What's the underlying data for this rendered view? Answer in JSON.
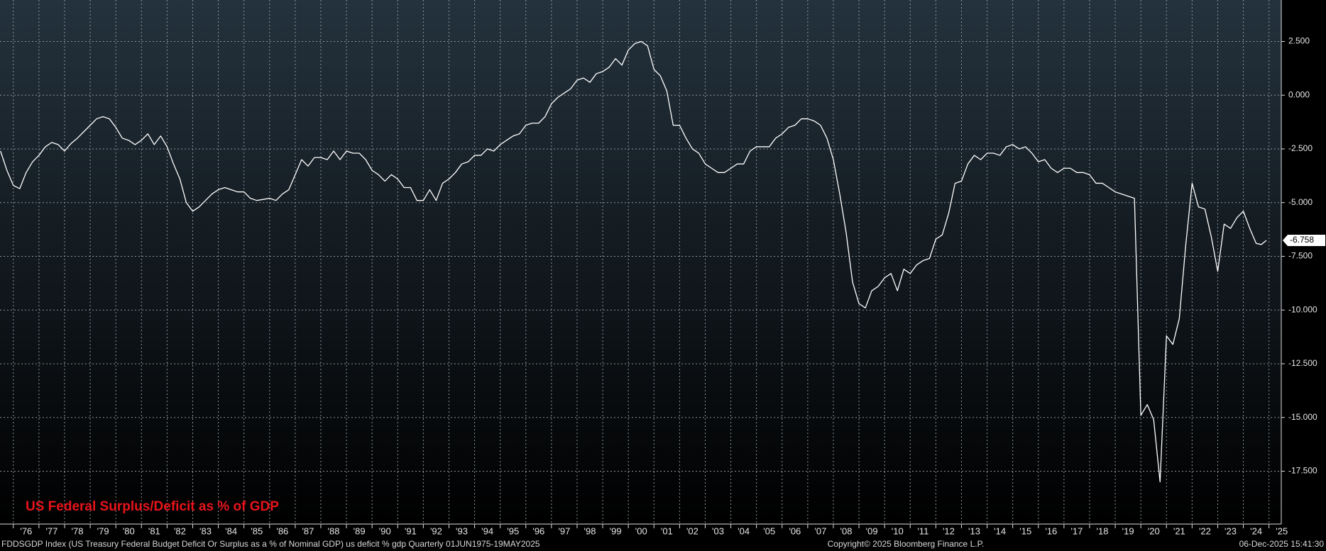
{
  "chart_data": {
    "type": "line",
    "title": "US Federal Surplus/Deficit as % of GDP",
    "source_note": "FDDSGDP Index (US Treasury Federal Budget Deficit Or Surplus as a % of Nominal GDP) us deficit % gdp Quarterly 01JUN1975-19MAY2025",
    "copyright": "Copyright© 2025 Bloomberg Finance L.P.",
    "timestamp": "06-Dec-2025 15:41:30",
    "color": "#ffffff",
    "grid": true,
    "xlim": [
      1975.48,
      2025.48
    ],
    "ylim": [
      -19.96,
      4.43
    ],
    "xticks": [
      {
        "value": 1976,
        "label": "'76"
      },
      {
        "value": 1977,
        "label": "'77"
      },
      {
        "value": 1978,
        "label": "'78"
      },
      {
        "value": 1979,
        "label": "'79"
      },
      {
        "value": 1980,
        "label": "'80"
      },
      {
        "value": 1981,
        "label": "'81"
      },
      {
        "value": 1982,
        "label": "'82"
      },
      {
        "value": 1983,
        "label": "'83"
      },
      {
        "value": 1984,
        "label": "'84"
      },
      {
        "value": 1985,
        "label": "'85"
      },
      {
        "value": 1986,
        "label": "'86"
      },
      {
        "value": 1987,
        "label": "'87"
      },
      {
        "value": 1988,
        "label": "'88"
      },
      {
        "value": 1989,
        "label": "'89"
      },
      {
        "value": 1990,
        "label": "'90"
      },
      {
        "value": 1991,
        "label": "'91"
      },
      {
        "value": 1992,
        "label": "'92"
      },
      {
        "value": 1993,
        "label": "'93"
      },
      {
        "value": 1994,
        "label": "'94"
      },
      {
        "value": 1995,
        "label": "'95"
      },
      {
        "value": 1996,
        "label": "'96"
      },
      {
        "value": 1997,
        "label": "'97"
      },
      {
        "value": 1998,
        "label": "'98"
      },
      {
        "value": 1999,
        "label": "'99"
      },
      {
        "value": 2000,
        "label": "'00"
      },
      {
        "value": 2001,
        "label": "'01"
      },
      {
        "value": 2002,
        "label": "'02"
      },
      {
        "value": 2003,
        "label": "'03"
      },
      {
        "value": 2004,
        "label": "'04"
      },
      {
        "value": 2005,
        "label": "'05"
      },
      {
        "value": 2006,
        "label": "'06"
      },
      {
        "value": 2007,
        "label": "'07"
      },
      {
        "value": 2008,
        "label": "'08"
      },
      {
        "value": 2009,
        "label": "'09"
      },
      {
        "value": 2010,
        "label": "'10"
      },
      {
        "value": 2011,
        "label": "'11"
      },
      {
        "value": 2012,
        "label": "'12"
      },
      {
        "value": 2013,
        "label": "'13"
      },
      {
        "value": 2014,
        "label": "'14"
      },
      {
        "value": 2015,
        "label": "'15"
      },
      {
        "value": 2016,
        "label": "'16"
      },
      {
        "value": 2017,
        "label": "'17"
      },
      {
        "value": 2018,
        "label": "'18"
      },
      {
        "value": 2019,
        "label": "'19"
      },
      {
        "value": 2020,
        "label": "'20"
      },
      {
        "value": 2021,
        "label": "'21"
      },
      {
        "value": 2022,
        "label": "'22"
      },
      {
        "value": 2023,
        "label": "'23"
      },
      {
        "value": 2024,
        "label": "'24"
      },
      {
        "value": 2025,
        "label": "'25"
      }
    ],
    "yticks": [
      {
        "value": 2.5,
        "label": "2.500"
      },
      {
        "value": 0,
        "label": "0.000"
      },
      {
        "value": -2.5,
        "label": "-2.500"
      },
      {
        "value": -5,
        "label": "-5.000"
      },
      {
        "value": -7.5,
        "label": "-7.500"
      },
      {
        "value": -10,
        "label": "-10.000"
      },
      {
        "value": -12.5,
        "label": "-12.500"
      },
      {
        "value": -15,
        "label": "-15.000"
      },
      {
        "value": -17.5,
        "label": "-17.500"
      }
    ],
    "x": [
      1975.5,
      1975.75,
      1976.0,
      1976.25,
      1976.5,
      1976.75,
      1977.0,
      1977.25,
      1977.5,
      1977.75,
      1978.0,
      1978.25,
      1978.5,
      1978.75,
      1979.0,
      1979.25,
      1979.5,
      1979.75,
      1980.0,
      1980.25,
      1980.5,
      1980.75,
      1981.0,
      1981.25,
      1981.5,
      1981.75,
      1982.0,
      1982.25,
      1982.5,
      1982.75,
      1983.0,
      1983.25,
      1983.5,
      1983.75,
      1984.0,
      1984.25,
      1984.5,
      1984.75,
      1985.0,
      1985.25,
      1985.5,
      1985.75,
      1986.0,
      1986.25,
      1986.5,
      1986.75,
      1987.0,
      1987.25,
      1987.5,
      1987.75,
      1988.0,
      1988.25,
      1988.5,
      1988.75,
      1989.0,
      1989.25,
      1989.5,
      1989.75,
      1990.0,
      1990.25,
      1990.5,
      1990.75,
      1991.0,
      1991.25,
      1991.5,
      1991.75,
      1992.0,
      1992.25,
      1992.5,
      1992.75,
      1993.0,
      1993.25,
      1993.5,
      1993.75,
      1994.0,
      1994.25,
      1994.5,
      1994.75,
      1995.0,
      1995.25,
      1995.5,
      1995.75,
      1996.0,
      1996.25,
      1996.5,
      1996.75,
      1997.0,
      1997.25,
      1997.5,
      1997.75,
      1998.0,
      1998.25,
      1998.5,
      1998.75,
      1999.0,
      1999.25,
      1999.5,
      1999.75,
      2000.0,
      2000.25,
      2000.5,
      2000.75,
      2001.0,
      2001.25,
      2001.5,
      2001.75,
      2002.0,
      2002.25,
      2002.5,
      2002.75,
      2003.0,
      2003.25,
      2003.5,
      2003.75,
      2004.0,
      2004.25,
      2004.5,
      2004.75,
      2005.0,
      2005.25,
      2005.5,
      2005.75,
      2006.0,
      2006.25,
      2006.5,
      2006.75,
      2007.0,
      2007.25,
      2007.5,
      2007.75,
      2008.0,
      2008.25,
      2008.5,
      2008.75,
      2009.0,
      2009.25,
      2009.5,
      2009.75,
      2010.0,
      2010.25,
      2010.5,
      2010.75,
      2011.0,
      2011.25,
      2011.5,
      2011.75,
      2012.0,
      2012.25,
      2012.5,
      2012.75,
      2013.0,
      2013.25,
      2013.5,
      2013.75,
      2014.0,
      2014.25,
      2014.5,
      2014.75,
      2015.0,
      2015.25,
      2015.5,
      2015.75,
      2016.0,
      2016.25,
      2016.5,
      2016.75,
      2017.0,
      2017.25,
      2017.5,
      2017.75,
      2018.0,
      2018.25,
      2018.5,
      2018.75,
      2019.0,
      2019.25,
      2019.5,
      2019.75,
      2020.0,
      2020.25,
      2020.5,
      2020.75,
      2021.0,
      2021.25,
      2021.5,
      2021.75,
      2022.0,
      2022.25,
      2022.5,
      2022.75,
      2023.0,
      2023.25,
      2023.5,
      2023.75,
      2024.0,
      2024.25,
      2024.5,
      2024.7,
      2024.9
    ],
    "values": [
      -2.6,
      -3.5,
      -4.2,
      -4.35,
      -3.6,
      -3.1,
      -2.8,
      -2.4,
      -2.2,
      -2.3,
      -2.6,
      -2.25,
      -2.0,
      -1.7,
      -1.4,
      -1.1,
      -1.0,
      -1.1,
      -1.5,
      -2.0,
      -2.1,
      -2.3,
      -2.1,
      -1.8,
      -2.3,
      -1.9,
      -2.4,
      -3.2,
      -3.9,
      -5.0,
      -5.4,
      -5.2,
      -4.9,
      -4.6,
      -4.4,
      -4.3,
      -4.4,
      -4.5,
      -4.5,
      -4.8,
      -4.9,
      -4.85,
      -4.8,
      -4.9,
      -4.6,
      -4.4,
      -3.7,
      -3.0,
      -3.3,
      -2.9,
      -2.9,
      -3.0,
      -2.6,
      -3.0,
      -2.6,
      -2.7,
      -2.7,
      -3.0,
      -3.5,
      -3.7,
      -4.0,
      -3.7,
      -3.9,
      -4.3,
      -4.3,
      -4.9,
      -4.9,
      -4.4,
      -4.9,
      -4.1,
      -3.9,
      -3.6,
      -3.2,
      -3.1,
      -2.8,
      -2.8,
      -2.5,
      -2.6,
      -2.3,
      -2.1,
      -1.9,
      -1.8,
      -1.4,
      -1.3,
      -1.3,
      -1.0,
      -0.4,
      -0.1,
      0.1,
      0.3,
      0.7,
      0.8,
      0.6,
      1.0,
      1.1,
      1.3,
      1.7,
      1.4,
      2.1,
      2.4,
      2.5,
      2.3,
      1.2,
      0.9,
      0.2,
      -1.4,
      -1.4,
      -2.0,
      -2.5,
      -2.7,
      -3.2,
      -3.4,
      -3.6,
      -3.6,
      -3.4,
      -3.2,
      -3.2,
      -2.6,
      -2.4,
      -2.4,
      -2.4,
      -2.0,
      -1.8,
      -1.5,
      -1.4,
      -1.1,
      -1.1,
      -1.2,
      -1.4,
      -2.0,
      -3.0,
      -4.6,
      -6.4,
      -8.7,
      -9.7,
      -9.9,
      -9.1,
      -8.9,
      -8.5,
      -8.3,
      -9.1,
      -8.1,
      -8.3,
      -7.9,
      -7.7,
      -7.6,
      -6.7,
      -6.5,
      -5.5,
      -4.1,
      -4.0,
      -3.2,
      -2.8,
      -3.0,
      -2.7,
      -2.7,
      -2.8,
      -2.4,
      -2.3,
      -2.5,
      -2.4,
      -2.7,
      -3.1,
      -3.0,
      -3.4,
      -3.6,
      -3.4,
      -3.4,
      -3.6,
      -3.6,
      -3.7,
      -4.1,
      -4.1,
      -4.3,
      -4.5,
      -4.6,
      -4.7,
      -4.8,
      -14.9,
      -14.4,
      -15.1,
      -18.0,
      -11.2,
      -11.6,
      -10.4,
      -7.0,
      -4.1,
      -5.2,
      -5.3,
      -6.6,
      -8.2,
      -6.0,
      -6.2,
      -5.7,
      -5.4,
      -6.2,
      -6.9,
      -6.95,
      -6.758
    ]
  }
}
